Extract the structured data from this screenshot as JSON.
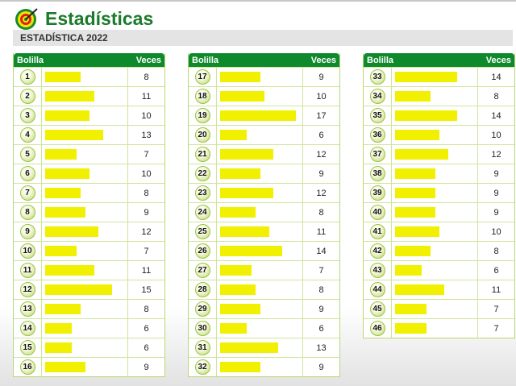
{
  "header": {
    "title": "Estadísticas",
    "subtitle": "ESTADÍSTICA 2022"
  },
  "columns": {
    "number": "Bolilla",
    "count": "Veces"
  },
  "colors": {
    "header_green": "#0e8a2c",
    "bar_yellow": "#f0f000"
  },
  "rows": [
    {
      "n": "1",
      "v": 8
    },
    {
      "n": "2",
      "v": 11
    },
    {
      "n": "3",
      "v": 10
    },
    {
      "n": "4",
      "v": 13
    },
    {
      "n": "5",
      "v": 7
    },
    {
      "n": "6",
      "v": 10
    },
    {
      "n": "7",
      "v": 8
    },
    {
      "n": "8",
      "v": 9
    },
    {
      "n": "9",
      "v": 12
    },
    {
      "n": "10",
      "v": 7
    },
    {
      "n": "11",
      "v": 11
    },
    {
      "n": "12",
      "v": 15
    },
    {
      "n": "13",
      "v": 8
    },
    {
      "n": "14",
      "v": 6
    },
    {
      "n": "15",
      "v": 6
    },
    {
      "n": "16",
      "v": 9
    },
    {
      "n": "17",
      "v": 9
    },
    {
      "n": "18",
      "v": 10
    },
    {
      "n": "19",
      "v": 17
    },
    {
      "n": "20",
      "v": 6
    },
    {
      "n": "21",
      "v": 12
    },
    {
      "n": "22",
      "v": 9
    },
    {
      "n": "23",
      "v": 12
    },
    {
      "n": "24",
      "v": 8
    },
    {
      "n": "25",
      "v": 11
    },
    {
      "n": "26",
      "v": 14
    },
    {
      "n": "27",
      "v": 7
    },
    {
      "n": "28",
      "v": 8
    },
    {
      "n": "29",
      "v": 9
    },
    {
      "n": "30",
      "v": 6
    },
    {
      "n": "31",
      "v": 13
    },
    {
      "n": "32",
      "v": 9
    },
    {
      "n": "33",
      "v": 14
    },
    {
      "n": "34",
      "v": 8
    },
    {
      "n": "35",
      "v": 14
    },
    {
      "n": "36",
      "v": 10
    },
    {
      "n": "37",
      "v": 12
    },
    {
      "n": "38",
      "v": 9
    },
    {
      "n": "39",
      "v": 9
    },
    {
      "n": "40",
      "v": 9
    },
    {
      "n": "41",
      "v": 10
    },
    {
      "n": "42",
      "v": 8
    },
    {
      "n": "43",
      "v": 6
    },
    {
      "n": "44",
      "v": 11
    },
    {
      "n": "45",
      "v": 7
    },
    {
      "n": "46",
      "v": 7
    }
  ]
}
